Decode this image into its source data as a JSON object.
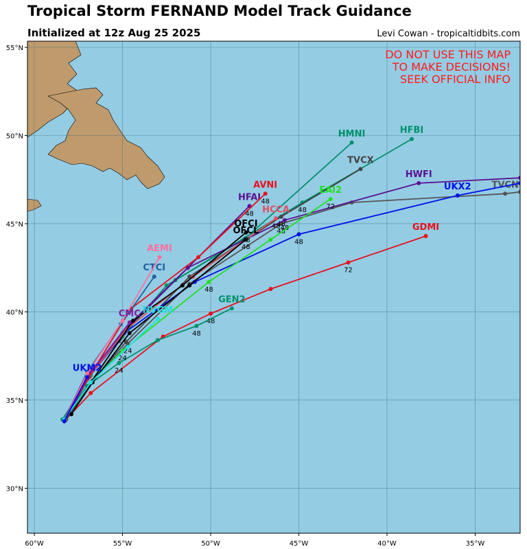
{
  "header": {
    "title": "Tropical Storm FERNAND Model Track Guidance",
    "subtitle": "Initialized at 12z Aug 25 2025",
    "credit": "Levi Cowan - tropicaltidbits.com"
  },
  "warning": [
    "DO NOT USE THIS MAP",
    "TO MAKE DECISIONS!",
    "SEEK OFFICIAL INFO"
  ],
  "map": {
    "lon_range": [
      -60.39,
      -32.45
    ],
    "lat_range": [
      27.45,
      55.35
    ],
    "lon_ticks": [
      {
        "value": -60,
        "label": "60°W"
      },
      {
        "value": -55,
        "label": "55°W"
      },
      {
        "value": -50,
        "label": "50°W"
      },
      {
        "value": -45,
        "label": "45°W"
      },
      {
        "value": -40,
        "label": "40°W"
      },
      {
        "value": -35,
        "label": "35°W"
      }
    ],
    "lat_ticks": [
      {
        "value": 30,
        "label": "30°N"
      },
      {
        "value": 35,
        "label": "35°N"
      },
      {
        "value": 40,
        "label": "40°N"
      },
      {
        "value": 45,
        "label": "45°N"
      },
      {
        "value": 50,
        "label": "50°N"
      },
      {
        "value": 55,
        "label": "55°N"
      }
    ]
  },
  "tracks": [
    {
      "name": "TVCN",
      "color": "#555555",
      "lon": [
        -58.2,
        -56.8,
        -54.7,
        -51.2,
        -46.0,
        -42.0,
        -33.3,
        -32.45
      ],
      "lat": [
        33.9,
        36.0,
        38.2,
        41.6,
        45.0,
        46.2,
        46.7,
        46.8
      ],
      "hours": [
        null,
        null,
        24,
        null,
        48,
        null,
        null,
        null
      ]
    },
    {
      "name": "GDMI",
      "color": "#e8101a",
      "lon": [
        -58.3,
        -56.8,
        -52.7,
        -50.0,
        -46.6,
        -42.2,
        -37.8
      ],
      "lat": [
        33.8,
        35.4,
        38.6,
        39.9,
        41.3,
        42.8,
        44.3
      ],
      "hours": [
        null,
        null,
        null,
        48,
        null,
        72,
        null
      ]
    },
    {
      "name": "GEN2",
      "color": "#00906a",
      "lon": [
        -58.4,
        -57.0,
        -55.2,
        -53.0,
        -50.8,
        -48.8
      ],
      "lat": [
        33.9,
        35.8,
        37.1,
        38.4,
        39.2,
        40.2
      ],
      "hours": [
        null,
        null,
        24,
        null,
        48,
        null
      ]
    },
    {
      "name": "HMNI",
      "color": "#00906a",
      "lon": [
        -58.4,
        -56.8,
        -55.0,
        -52.5,
        -48.0,
        -42.0
      ],
      "lat": [
        33.9,
        36.5,
        38.6,
        41.5,
        44.2,
        49.6
      ],
      "hours": [
        null,
        null,
        null,
        null,
        null,
        null
      ]
    },
    {
      "name": "HFBI",
      "color": "#00906a",
      "lon": [
        -58.3,
        -56.8,
        -55.0,
        -52.0,
        -44.8,
        -38.6
      ],
      "lat": [
        33.9,
        36.4,
        38.8,
        41.8,
        46.2,
        49.8
      ],
      "hours": [
        null,
        null,
        24,
        null,
        48,
        null
      ]
    },
    {
      "name": "TVCX",
      "color": "#444444",
      "lon": [
        -58.2,
        -56.7,
        -54.8,
        -51.2,
        -46.0,
        -41.5
      ],
      "lat": [
        33.9,
        36.1,
        38.3,
        42.0,
        45.4,
        48.1
      ],
      "hours": [
        null,
        null,
        null,
        null,
        48,
        null
      ]
    },
    {
      "name": "HWFI",
      "color": "#5a1090",
      "lon": [
        -58.3,
        -57.0,
        -54.8,
        -51.3,
        -45.8,
        -38.2,
        -32.45
      ],
      "lat": [
        33.8,
        36.2,
        39.0,
        42.5,
        45.2,
        47.3,
        47.6
      ],
      "hours": [
        null,
        null,
        null,
        null,
        48,
        null,
        null
      ]
    },
    {
      "name": "UKX2",
      "color": "#0010e8",
      "lon": [
        -58.3,
        -56.9,
        -54.9,
        -50.9,
        -45.0,
        -36.0,
        -32.45
      ],
      "lat": [
        33.8,
        36.3,
        38.8,
        41.7,
        44.4,
        46.6,
        47.3
      ],
      "hours": [
        null,
        null,
        null,
        null,
        48,
        null,
        null
      ]
    },
    {
      "name": "EAI2",
      "color": "#20e020",
      "lon": [
        -58.3,
        -56.8,
        -55.0,
        -50.1,
        -46.6,
        -43.2
      ],
      "lat": [
        33.9,
        36.0,
        37.8,
        41.7,
        44.1,
        46.4
      ],
      "hours": [
        null,
        null,
        24,
        48,
        null,
        72
      ]
    },
    {
      "name": "HFAI",
      "color": "#5a1090",
      "lon": [
        -58.3,
        -57.0,
        -54.5,
        -51.3,
        -47.8
      ],
      "lat": [
        33.8,
        36.4,
        39.4,
        42.5,
        46.0
      ],
      "hours": [
        null,
        null,
        null,
        null,
        48
      ]
    },
    {
      "name": "HCCA",
      "color": "#e05060",
      "lon": [
        -58.3,
        -56.9,
        -54.8,
        -51.0,
        -46.3
      ],
      "lat": [
        33.9,
        36.3,
        39.0,
        42.0,
        45.3
      ],
      "hours": [
        null,
        null,
        null,
        null,
        48
      ]
    },
    {
      "name": "AVNI",
      "color": "#e8101a",
      "lon": [
        -58.3,
        -56.9,
        -54.5,
        -50.7,
        -46.9
      ],
      "lat": [
        33.9,
        36.3,
        40.2,
        43.1,
        46.7
      ],
      "hours": [
        null,
        null,
        null,
        null,
        48
      ]
    },
    {
      "name": "OFCI",
      "color": "#000000",
      "lon": [
        -58.3,
        -56.8,
        -54.4,
        -51.6,
        -48.0
      ],
      "lat": [
        33.9,
        36.0,
        39.5,
        41.5,
        44.5
      ],
      "hours": [
        null,
        null,
        null,
        null,
        48
      ]
    },
    {
      "name": "OFCL",
      "color": "#000000",
      "lon": [
        -57.9,
        -56.7,
        -54.6,
        -51.2,
        -48.0
      ],
      "lat": [
        34.2,
        36.0,
        38.8,
        41.5,
        44.1
      ],
      "hours": [
        null,
        null,
        null,
        null,
        48
      ]
    },
    {
      "name": "CTCI",
      "color": "#2060a0",
      "lon": [
        -58.3,
        -57.0,
        -55.1,
        -53.2
      ],
      "lat": [
        33.9,
        36.6,
        39.3,
        42.0
      ],
      "hours": [
        null,
        null,
        null,
        null
      ]
    },
    {
      "name": "AEMI",
      "color": "#ff70a0",
      "lon": [
        -58.3,
        -57.0,
        -55.0,
        -52.9
      ],
      "lat": [
        33.9,
        36.5,
        39.5,
        43.1
      ],
      "hours": [
        null,
        null,
        null,
        null
      ]
    },
    {
      "name": "CMC",
      "color": "#8020a0",
      "lon": [
        -58.3,
        -57.0,
        -54.6
      ],
      "lat": [
        33.9,
        36.3,
        39.4
      ],
      "hours": [
        null,
        null,
        null
      ]
    },
    {
      "name": "NVGM",
      "color": "#20e0e0",
      "lon": [
        -58.3,
        -56.8,
        -54.7,
        -53.0
      ],
      "lat": [
        33.9,
        36.0,
        38.0,
        39.6
      ],
      "hours": [
        null,
        null,
        null,
        null
      ]
    },
    {
      "name": "UKM2",
      "color": "#0010e8",
      "lon": [
        -58.3,
        -57.0
      ],
      "lat": [
        33.8,
        36.3
      ],
      "hours": [
        null,
        null
      ]
    }
  ]
}
